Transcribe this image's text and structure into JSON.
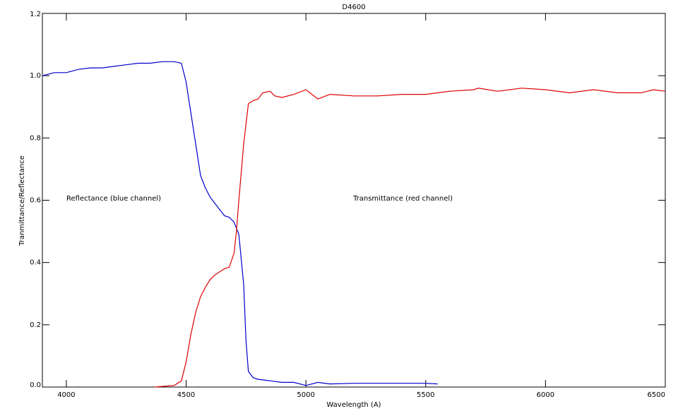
{
  "chart_data": {
    "type": "line",
    "title": "D4600",
    "x_label": "Wavelength (A)",
    "y_label": "Tranmittance/Reflectance",
    "annotations": [
      "Reflectance (blue channel)",
      "Transmittance (red channel)"
    ],
    "xlim": [
      3900,
      6500
    ],
    "xticks": [
      4000,
      4500,
      5000,
      5500,
      6000,
      6500
    ],
    "ylim": [
      0,
      1.2
    ],
    "yticks": [
      {
        "value": 0,
        "label": "0.0"
      },
      0.2,
      0.4,
      0.6,
      0.8,
      {
        "value": 1,
        "label": "1.0"
      },
      1.2
    ],
    "series": [
      {
        "color": "#0000cc",
        "x": [
          3900,
          3950,
          4000,
          4050,
          4100,
          4150,
          4200,
          4250,
          4300,
          4350,
          4400,
          4450,
          4480,
          4500,
          4520,
          4540,
          4560,
          4580,
          4600,
          4620,
          4640,
          4660,
          4680,
          4700,
          4720,
          4740,
          4750,
          4760,
          4780,
          4800,
          4850,
          4900,
          4950,
          5000,
          5050,
          5100,
          5200,
          5300,
          5400,
          5500,
          5550
        ],
        "values": [
          1.0,
          1.01,
          1.01,
          1.02,
          1.025,
          1.025,
          1.03,
          1.035,
          1.04,
          1.04,
          1.045,
          1.045,
          1.04,
          0.98,
          0.88,
          0.78,
          0.68,
          0.64,
          0.61,
          0.59,
          0.57,
          0.55,
          0.545,
          0.53,
          0.49,
          0.33,
          0.15,
          0.05,
          0.03,
          0.025,
          0.02,
          0.015,
          0.015,
          0.005,
          0.015,
          0.01,
          0.012,
          0.012,
          0.012,
          0.012,
          0.01
        ]
      },
      {
        "color": "#dd0000",
        "x": [
          4370,
          4400,
          4450,
          4480,
          4500,
          4520,
          4540,
          4560,
          4580,
          4600,
          4620,
          4640,
          4660,
          4680,
          4700,
          4710,
          4720,
          4740,
          4760,
          4780,
          4800,
          4820,
          4850,
          4870,
          4900,
          4950,
          5000,
          5050,
          5100,
          5200,
          5300,
          5400,
          5500,
          5600,
          5700,
          5720,
          5800,
          5900,
          6000,
          6100,
          6200,
          6300,
          6400,
          6450,
          6500
        ],
        "values": [
          0.0,
          0.002,
          0.005,
          0.02,
          0.08,
          0.17,
          0.24,
          0.29,
          0.32,
          0.345,
          0.36,
          0.37,
          0.38,
          0.385,
          0.43,
          0.5,
          0.6,
          0.78,
          0.91,
          0.92,
          0.925,
          0.945,
          0.95,
          0.935,
          0.93,
          0.94,
          0.955,
          0.925,
          0.94,
          0.935,
          0.935,
          0.94,
          0.94,
          0.95,
          0.955,
          0.96,
          0.95,
          0.96,
          0.955,
          0.945,
          0.955,
          0.945,
          0.945,
          0.955,
          0.95
        ]
      }
    ]
  }
}
